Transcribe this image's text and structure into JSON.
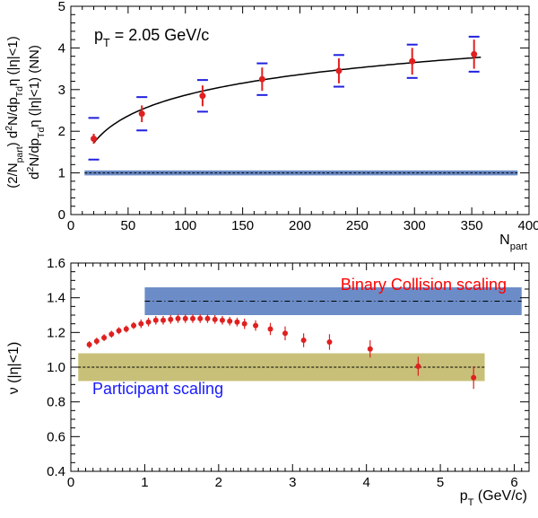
{
  "chart_data": [
    {
      "type": "scatter",
      "annotation": "p_T = 2.05 GeV/c",
      "ylabel_upper": "(2/N_part) d²N/dp_Tdη (|η|<1)",
      "ylabel_lower": "d²N/dp_Tdη (|η|<1) (NN)",
      "xlabel": "N_part",
      "xlim": [
        0,
        400
      ],
      "ylim": [
        0,
        5
      ],
      "xticks": [
        0,
        50,
        100,
        150,
        200,
        250,
        300,
        350,
        400
      ],
      "yticks": [
        0,
        1,
        2,
        3,
        4,
        5
      ],
      "series": [
        {
          "x": [
            20,
            62,
            115,
            167,
            234,
            298,
            352
          ],
          "y": [
            1.82,
            2.42,
            2.85,
            3.25,
            3.45,
            3.68,
            3.85
          ],
          "stat_err": [
            0.12,
            0.2,
            0.25,
            0.28,
            0.3,
            0.32,
            0.35
          ],
          "sys_err": [
            0.5,
            0.4,
            0.38,
            0.38,
            0.38,
            0.4,
            0.42
          ]
        }
      ],
      "fit_curve": {
        "x_range": [
          20,
          358
        ]
      },
      "reference_band": {
        "value": 1.0,
        "half_width": 0.06,
        "x_range": [
          12,
          390
        ]
      },
      "colors": {
        "points": "#e02020",
        "sys": "#2020e0",
        "band": "#6b8cc7"
      }
    },
    {
      "type": "scatter",
      "ylabel": "ν (|η|<1)",
      "xlabel": "p_T (GeV/c)",
      "xlim": [
        0,
        6.2
      ],
      "ylim": [
        0.4,
        1.6
      ],
      "xticks": [
        0,
        1,
        2,
        3,
        4,
        5,
        6
      ],
      "yticks": [
        0.4,
        0.6,
        0.8,
        1.0,
        1.2,
        1.4,
        1.6
      ],
      "series": [
        {
          "x": [
            0.25,
            0.35,
            0.45,
            0.55,
            0.65,
            0.75,
            0.85,
            0.95,
            1.05,
            1.15,
            1.25,
            1.35,
            1.45,
            1.55,
            1.65,
            1.75,
            1.85,
            1.95,
            2.05,
            2.15,
            2.25,
            2.35,
            2.5,
            2.7,
            2.9,
            3.15,
            3.5,
            4.05,
            4.7,
            5.45
          ],
          "y": [
            1.13,
            1.15,
            1.17,
            1.19,
            1.21,
            1.22,
            1.24,
            1.25,
            1.26,
            1.27,
            1.27,
            1.275,
            1.28,
            1.28,
            1.28,
            1.28,
            1.28,
            1.275,
            1.27,
            1.265,
            1.26,
            1.25,
            1.24,
            1.22,
            1.195,
            1.155,
            1.145,
            1.105,
            1.005,
            0.94
          ],
          "err": [
            0.02,
            0.02,
            0.02,
            0.02,
            0.02,
            0.02,
            0.02,
            0.025,
            0.025,
            0.025,
            0.025,
            0.025,
            0.025,
            0.025,
            0.025,
            0.025,
            0.025,
            0.025,
            0.025,
            0.025,
            0.025,
            0.03,
            0.03,
            0.035,
            0.04,
            0.04,
            0.045,
            0.05,
            0.055,
            0.065
          ]
        }
      ],
      "bands": [
        {
          "label": "Binary Collision scaling",
          "value": 1.38,
          "half_width": 0.08,
          "x_range": [
            1.0,
            6.1
          ],
          "color": "#6b8cc7",
          "label_color": "#ff0000"
        },
        {
          "label": "Participant scaling",
          "value": 1.0,
          "half_width": 0.08,
          "x_range": [
            0.1,
            5.6
          ],
          "color": "#c8c078",
          "label_color": "#1a1aff"
        }
      ]
    }
  ]
}
